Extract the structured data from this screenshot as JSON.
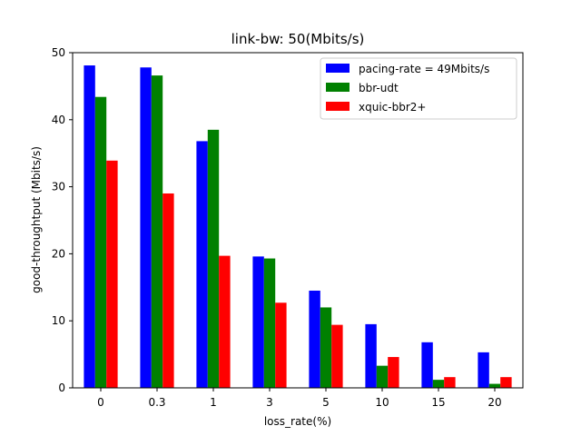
{
  "chart_data": {
    "type": "bar",
    "title": "link-bw: 50(Mbits/s)",
    "xlabel": "loss_rate(%)",
    "ylabel": "good-throughtput (Mbits/s)",
    "categories": [
      "0",
      "0.3",
      "1",
      "3",
      "5",
      "10",
      "15",
      "20"
    ],
    "ylim": [
      0,
      50
    ],
    "yticks": [
      0,
      10,
      20,
      30,
      40,
      50
    ],
    "grid": false,
    "legend_position": "top-right",
    "series": [
      {
        "name": "pacing-rate = 49Mbits/s",
        "color": "#0000ff",
        "values": [
          48.1,
          47.8,
          36.8,
          19.6,
          14.5,
          9.5,
          6.8,
          5.3
        ]
      },
      {
        "name": "bbr-udt",
        "color": "#008000",
        "values": [
          43.4,
          46.6,
          38.5,
          19.3,
          12.0,
          3.3,
          1.2,
          0.6
        ]
      },
      {
        "name": "xquic-bbr2+",
        "color": "#ff0000",
        "values": [
          33.9,
          29.0,
          19.7,
          12.7,
          9.4,
          4.6,
          1.6,
          1.6
        ]
      }
    ]
  }
}
